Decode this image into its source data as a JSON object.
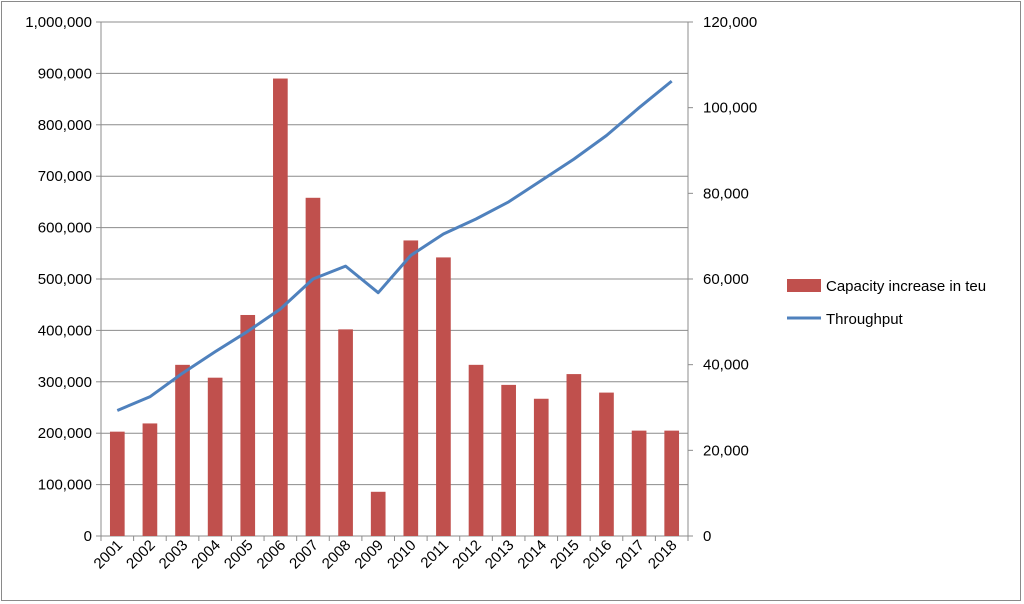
{
  "chart_data": {
    "type": "bar",
    "categories": [
      "2001",
      "2002",
      "2003",
      "2004",
      "2005",
      "2006",
      "2007",
      "2008",
      "2009",
      "2010",
      "2011",
      "2012",
      "2013",
      "2014",
      "2015",
      "2016",
      "2017",
      "2018"
    ],
    "series": [
      {
        "name": "Capacity increase in teu",
        "type": "bar",
        "axis": "left",
        "color": "#c0504d",
        "values": [
          203000,
          219000,
          333000,
          308000,
          430000,
          890000,
          658000,
          402000,
          86000,
          575000,
          542000,
          333000,
          294000,
          267000,
          315000,
          279000,
          205000,
          205000
        ]
      },
      {
        "name": "Throughput",
        "type": "line",
        "axis": "right",
        "color": "#4f81bd",
        "values": [
          29300,
          32500,
          38000,
          43000,
          47800,
          53000,
          60000,
          63000,
          56800,
          65500,
          70500,
          74000,
          78000,
          83000,
          88000,
          93500,
          100000,
          106200
        ]
      }
    ],
    "y_left": {
      "lim": [
        0,
        1000000
      ],
      "ticks": [
        0,
        100000,
        200000,
        300000,
        400000,
        500000,
        600000,
        700000,
        800000,
        900000,
        1000000
      ],
      "tick_labels": [
        "0",
        "100,000",
        "200,000",
        "300,000",
        "400,000",
        "500,000",
        "600,000",
        "700,000",
        "800,000",
        "900,000",
        "1,000,000"
      ]
    },
    "y_right": {
      "lim": [
        0,
        120000
      ],
      "ticks": [
        0,
        20000,
        40000,
        60000,
        80000,
        100000,
        120000
      ],
      "tick_labels": [
        "0",
        "20,000",
        "40,000",
        "60,000",
        "80,000",
        "100,000",
        "120,000"
      ]
    },
    "title": "",
    "xlabel": "",
    "ylabel": "",
    "grid": true,
    "legend": "right"
  }
}
